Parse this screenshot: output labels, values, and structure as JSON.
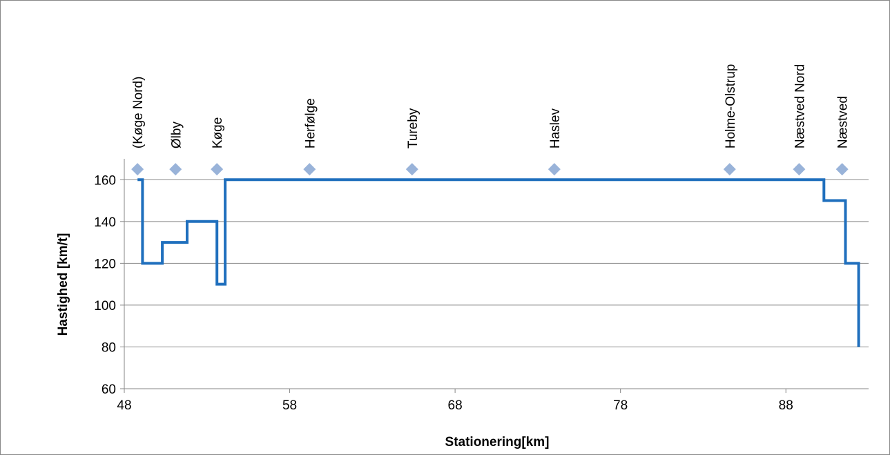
{
  "chart_data": {
    "type": "line",
    "title": "",
    "xlabel": "Stationering[km]",
    "ylabel": "Hastighed [km/t]",
    "xlim": [
      48,
      93
    ],
    "ylim": [
      60,
      170
    ],
    "x_ticks": [
      48,
      58,
      68,
      78,
      88
    ],
    "y_ticks": [
      60,
      80,
      100,
      120,
      140,
      160
    ],
    "grid": "horizontal",
    "legend": "none",
    "speed_line": {
      "color": "#1f6fbd",
      "points": [
        [
          48.8,
          160
        ],
        [
          49.1,
          160
        ],
        [
          49.1,
          120
        ],
        [
          50.3,
          120
        ],
        [
          50.3,
          130
        ],
        [
          51.8,
          130
        ],
        [
          51.8,
          140
        ],
        [
          53.6,
          140
        ],
        [
          53.6,
          110
        ],
        [
          54.1,
          110
        ],
        [
          54.1,
          160
        ],
        [
          90.3,
          160
        ],
        [
          90.3,
          150
        ],
        [
          91.6,
          150
        ],
        [
          91.6,
          120
        ],
        [
          92.4,
          120
        ],
        [
          92.4,
          80
        ]
      ]
    },
    "stations": {
      "color": "#99b3d9",
      "y": 165,
      "items": [
        {
          "label": "(Køge Nord)",
          "x": 48.8
        },
        {
          "label": "Ølby",
          "x": 51.1
        },
        {
          "label": "Køge",
          "x": 53.6
        },
        {
          "label": "Herfølge",
          "x": 59.2
        },
        {
          "label": "Tureby",
          "x": 65.4
        },
        {
          "label": "Haslev",
          "x": 74.0
        },
        {
          "label": "Holme-Olstrup",
          "x": 84.6
        },
        {
          "label": "Næstved Nord",
          "x": 88.8
        },
        {
          "label": "Næstved",
          "x": 91.4
        }
      ]
    }
  }
}
